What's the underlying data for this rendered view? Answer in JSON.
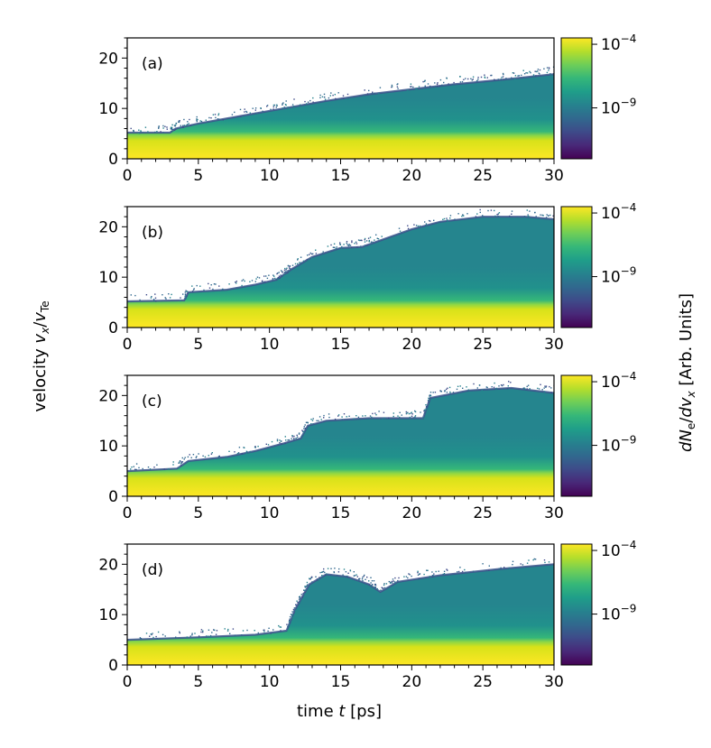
{
  "chart_data": {
    "type": "heatmap",
    "xlabel": {
      "prefix": "time ",
      "var": "t",
      "suffix": " [ps]"
    },
    "ylabel": {
      "prefix": "velocity ",
      "num": "v",
      "num_sub": "x",
      "slash": "/",
      "den": "v",
      "den_sub": "Te"
    },
    "colorbar_label": {
      "d1": "d",
      "N": "N",
      "N_sub": "e",
      "slash": "/",
      "d2": "d",
      "v": "v",
      "v_sub": "x",
      "suffix": " [Arb. Units]"
    },
    "xlim": [
      0,
      30
    ],
    "ylim": [
      0,
      24
    ],
    "xticks": [
      0,
      5,
      10,
      15,
      20,
      25,
      30
    ],
    "yticks": [
      0,
      10,
      20
    ],
    "color_scale": "log",
    "colormap": "viridis",
    "colormap_stops": [
      "#440154",
      "#482878",
      "#3e4a89",
      "#31688e",
      "#26828e",
      "#1f9e89",
      "#35b779",
      "#6ece58",
      "#b5de2b",
      "#fde725"
    ],
    "colorbar_range_exp": [
      -13,
      -3.5
    ],
    "colorbar_ticks": [
      {
        "base": "10",
        "exp": "−4",
        "value_exp": -4
      },
      {
        "base": "10",
        "exp": "−9",
        "value_exp": -9
      }
    ],
    "panels": [
      {
        "label": "(a)",
        "max_velocity_edge": [
          [
            0,
            5.2
          ],
          [
            3,
            5.2
          ],
          [
            3.4,
            6.0
          ],
          [
            5,
            7.0
          ],
          [
            8,
            8.5
          ],
          [
            11,
            10.0
          ],
          [
            14,
            11.5
          ],
          [
            17,
            12.8
          ],
          [
            20,
            13.8
          ],
          [
            23,
            14.8
          ],
          [
            26,
            15.6
          ],
          [
            28,
            16.2
          ],
          [
            30,
            16.8
          ]
        ]
      },
      {
        "label": "(b)",
        "max_velocity_edge": [
          [
            0,
            5.2
          ],
          [
            4,
            5.4
          ],
          [
            4.3,
            7.0
          ],
          [
            7,
            7.5
          ],
          [
            9,
            8.5
          ],
          [
            10.5,
            9.5
          ],
          [
            11.5,
            11.5
          ],
          [
            13,
            14.0
          ],
          [
            15,
            15.8
          ],
          [
            16.5,
            16.0
          ],
          [
            18,
            17.5
          ],
          [
            20,
            19.5
          ],
          [
            22,
            21.0
          ],
          [
            25,
            22.0
          ],
          [
            28,
            22.0
          ],
          [
            30,
            21.5
          ]
        ]
      },
      {
        "label": "(c)",
        "max_velocity_edge": [
          [
            0,
            5.0
          ],
          [
            3.5,
            5.5
          ],
          [
            4.3,
            7.0
          ],
          [
            7,
            7.8
          ],
          [
            9,
            9.0
          ],
          [
            11,
            10.5
          ],
          [
            12.2,
            11.5
          ],
          [
            12.7,
            14.0
          ],
          [
            14,
            15.0
          ],
          [
            17,
            15.5
          ],
          [
            19,
            15.5
          ],
          [
            20.8,
            15.5
          ],
          [
            21.3,
            19.5
          ],
          [
            24,
            21.0
          ],
          [
            27,
            21.5
          ],
          [
            30,
            20.5
          ]
        ]
      },
      {
        "label": "(d)",
        "max_velocity_edge": [
          [
            0,
            5.0
          ],
          [
            5,
            5.5
          ],
          [
            9,
            6.0
          ],
          [
            11.2,
            6.8
          ],
          [
            11.8,
            11.0
          ],
          [
            12.8,
            16.0
          ],
          [
            14,
            18.0
          ],
          [
            15.5,
            17.5
          ],
          [
            17,
            16.0
          ],
          [
            17.8,
            14.5
          ],
          [
            19,
            16.5
          ],
          [
            22,
            17.8
          ],
          [
            26,
            19.0
          ],
          [
            30,
            20.0
          ]
        ]
      }
    ]
  }
}
